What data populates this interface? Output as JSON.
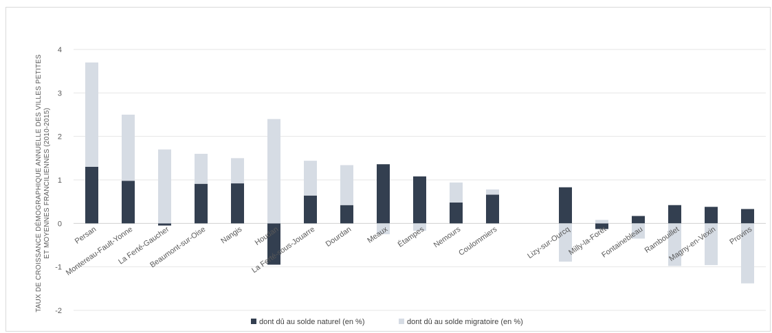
{
  "chart_data": {
    "type": "bar",
    "stacked": true,
    "title": "",
    "ylabel_lines": [
      "TAUX DE CROISSANCE DÉMOGRAPHIQUE ANNUELLE DES VILLES PETITES",
      "ET MOYENNES FRANCILIENNES (2010-2015)"
    ],
    "xlabel": "",
    "ylim": [
      -2,
      4
    ],
    "yticks": [
      "4",
      "3",
      "2",
      "1",
      "0",
      "-1",
      "-2"
    ],
    "ytick_values": [
      4,
      3,
      2,
      1,
      0,
      -1,
      -2
    ],
    "grid": true,
    "legend_position": "bottom",
    "categories": [
      "Persan",
      "Montereau-Fault-Yonne",
      "La Ferté-Gaucher",
      "Beaumont-sur-Oise",
      "Nangis",
      "Houdan",
      "La Ferté-sous-Jouarre",
      "Dourdan",
      "Meaux",
      "Étampes",
      "Nemours",
      "Coulommiers",
      "",
      "Lizy-sur-Ourcq",
      "Milly-la-Forêt",
      "Fontainebleau",
      "Rambouillet",
      "Magny-en-Vexin",
      "Provins"
    ],
    "series": [
      {
        "name": "dont dû au solde naturel (en %)",
        "color": "#333f50",
        "values": [
          1.3,
          0.98,
          -0.05,
          0.91,
          0.92,
          -0.95,
          0.64,
          0.42,
          1.36,
          1.08,
          0.48,
          0.66,
          null,
          0.83,
          -0.13,
          0.17,
          0.42,
          0.38,
          0.33
        ]
      },
      {
        "name": "dont dû au solde migratoire (en %)",
        "color": "#d6dce4",
        "values": [
          2.4,
          1.52,
          1.7,
          0.69,
          0.58,
          2.4,
          0.8,
          0.92,
          -0.25,
          -0.17,
          0.46,
          0.12,
          null,
          -0.88,
          0.08,
          -0.35,
          -0.98,
          -0.96,
          -1.38
        ]
      }
    ]
  }
}
